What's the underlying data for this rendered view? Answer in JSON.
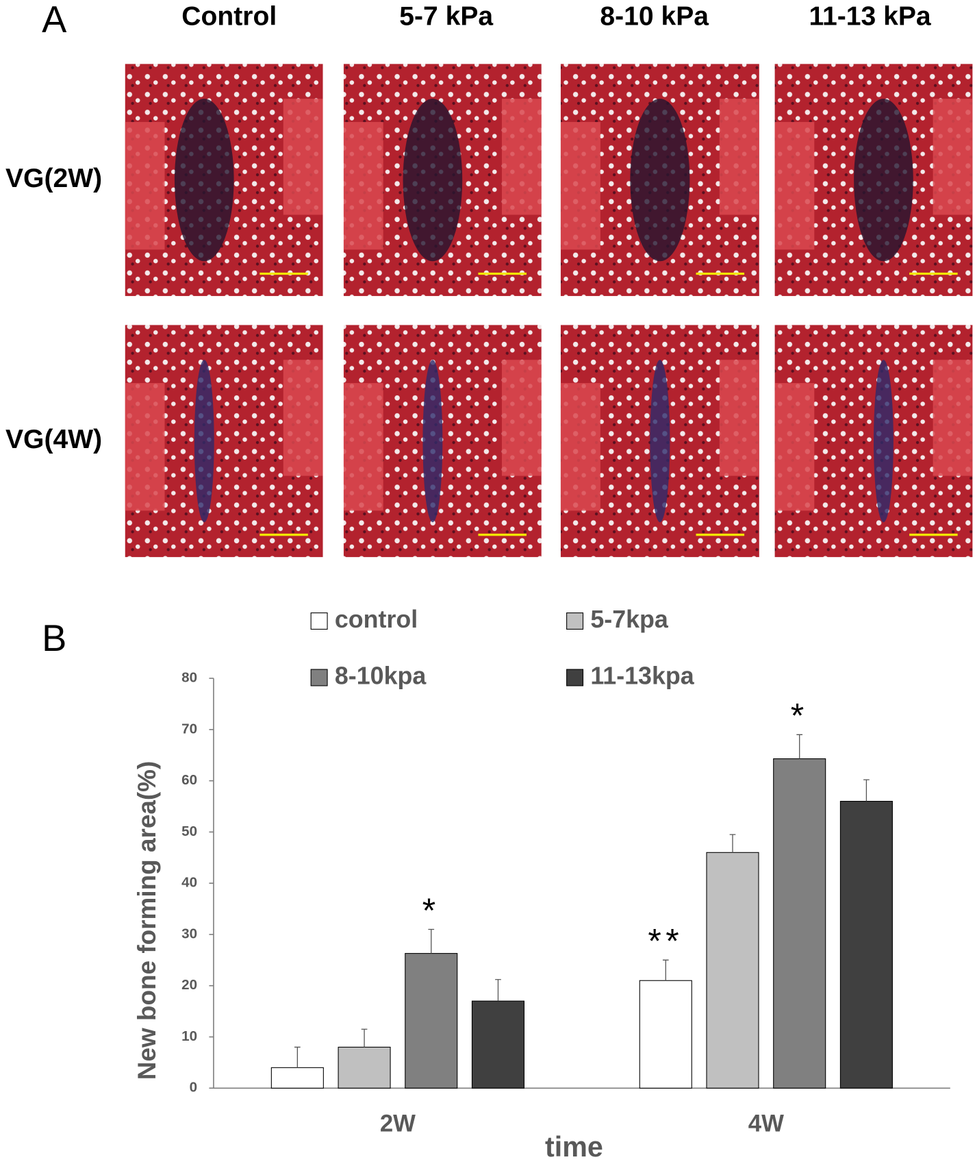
{
  "panel_a": {
    "label": "A",
    "columns": [
      "Control",
      "5-7 kPa",
      "8-10 kPa",
      "11-13 kPa"
    ],
    "rows": [
      "VG(2W)",
      "VG(4W)"
    ]
  },
  "panel_b_label": "B",
  "chart_data": {
    "type": "bar",
    "ylabel": "New bone forming area(%)",
    "xlabel": "time",
    "categories": [
      "2W",
      "4W"
    ],
    "series": [
      {
        "name": "control",
        "color": "#ffffff",
        "values": [
          4,
          21
        ],
        "errors": [
          4,
          4
        ]
      },
      {
        "name": "5-7kpa",
        "color": "#c0c0c0",
        "values": [
          8,
          46
        ],
        "errors": [
          3.5,
          3.5
        ]
      },
      {
        "name": "8-10kpa",
        "color": "#808080",
        "values": [
          26.3,
          64.3
        ],
        "errors": [
          4.7,
          4.7
        ]
      },
      {
        "name": "11-13kpa",
        "color": "#404040",
        "values": [
          17,
          56
        ],
        "errors": [
          4.2,
          4.2
        ]
      }
    ],
    "ylim": [
      0,
      80
    ],
    "yticks": [
      0,
      10,
      20,
      30,
      40,
      50,
      60,
      70,
      80
    ],
    "grid": false,
    "legend": "top",
    "annotations": [
      {
        "text": "*",
        "series": "8-10kpa",
        "category": "2W"
      },
      {
        "text": "**",
        "series": "control",
        "category": "4W"
      },
      {
        "text": "*",
        "series": "8-10kpa",
        "category": "4W"
      }
    ]
  }
}
